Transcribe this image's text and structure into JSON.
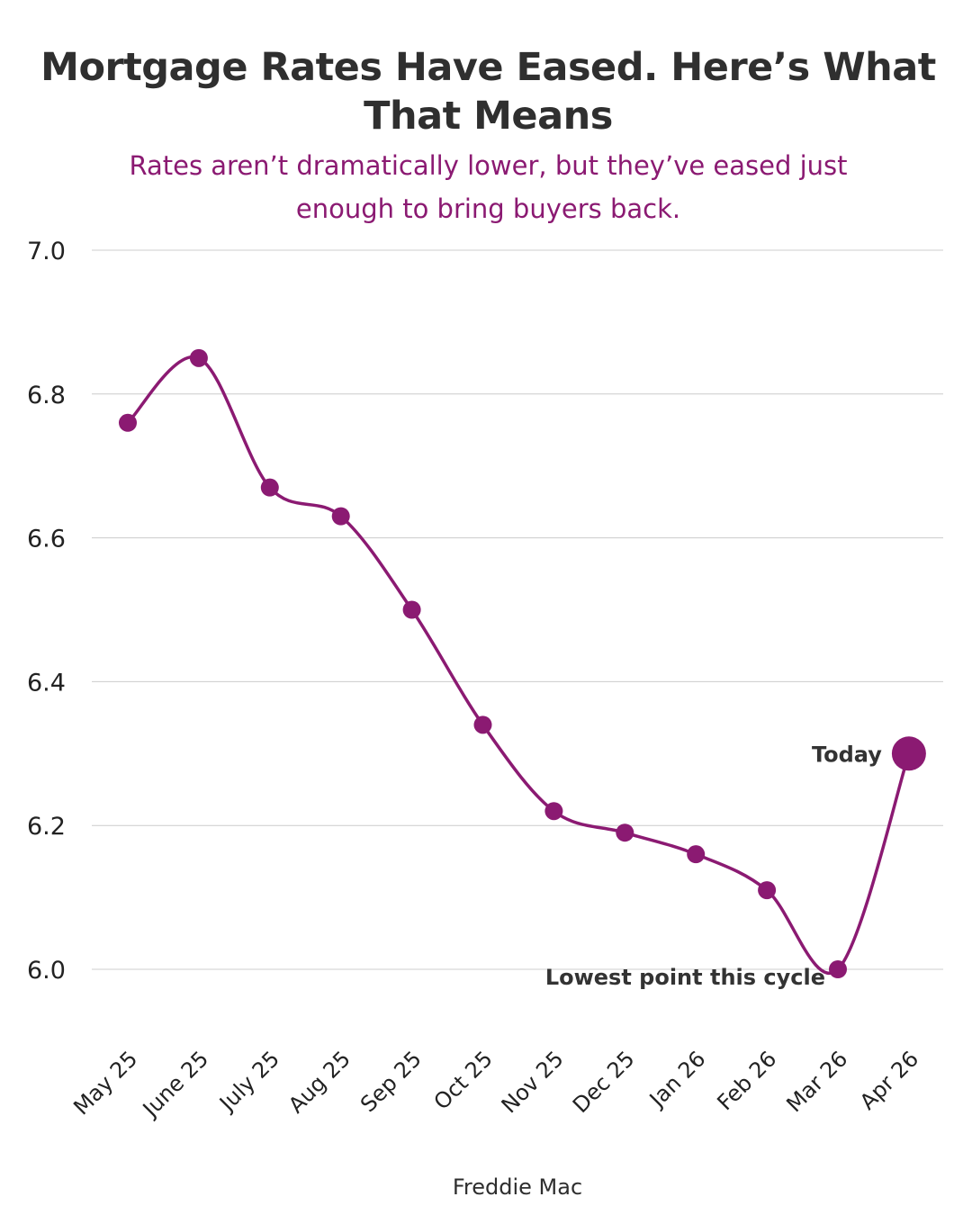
{
  "chart_data": {
    "type": "line",
    "title": "Mortgage Rates Have Eased. Here’s What That Means",
    "subtitle": "Rates aren’t dramatically lower, but they’ve eased just enough to bring buyers back.",
    "source": "Freddie Mac",
    "categories": [
      "May 25",
      "June 25",
      "July 25",
      "Aug 25",
      "Sep 25",
      "Oct 25",
      "Nov 25",
      "Dec 25",
      "Jan 26",
      "Feb 26",
      "Mar 26",
      "Apr 26"
    ],
    "series": [
      {
        "values": [
          6.76,
          6.85,
          6.67,
          6.63,
          6.5,
          6.34,
          6.22,
          6.19,
          6.16,
          6.11,
          6.0,
          6.3
        ]
      }
    ],
    "ylim": [
      6.0,
      7.0
    ],
    "yticks": [
      "6.0",
      "6.2",
      "6.4",
      "6.6",
      "6.8",
      "7.0"
    ],
    "grid": true,
    "line_color": "#8b1a72",
    "grid_color": "#cccccc",
    "annotations": [
      {
        "text": "Today",
        "category": "Apr 26",
        "value": 6.3
      },
      {
        "text": "Lowest point this cycle",
        "category": "Mar 26",
        "value": 6.0
      }
    ]
  }
}
